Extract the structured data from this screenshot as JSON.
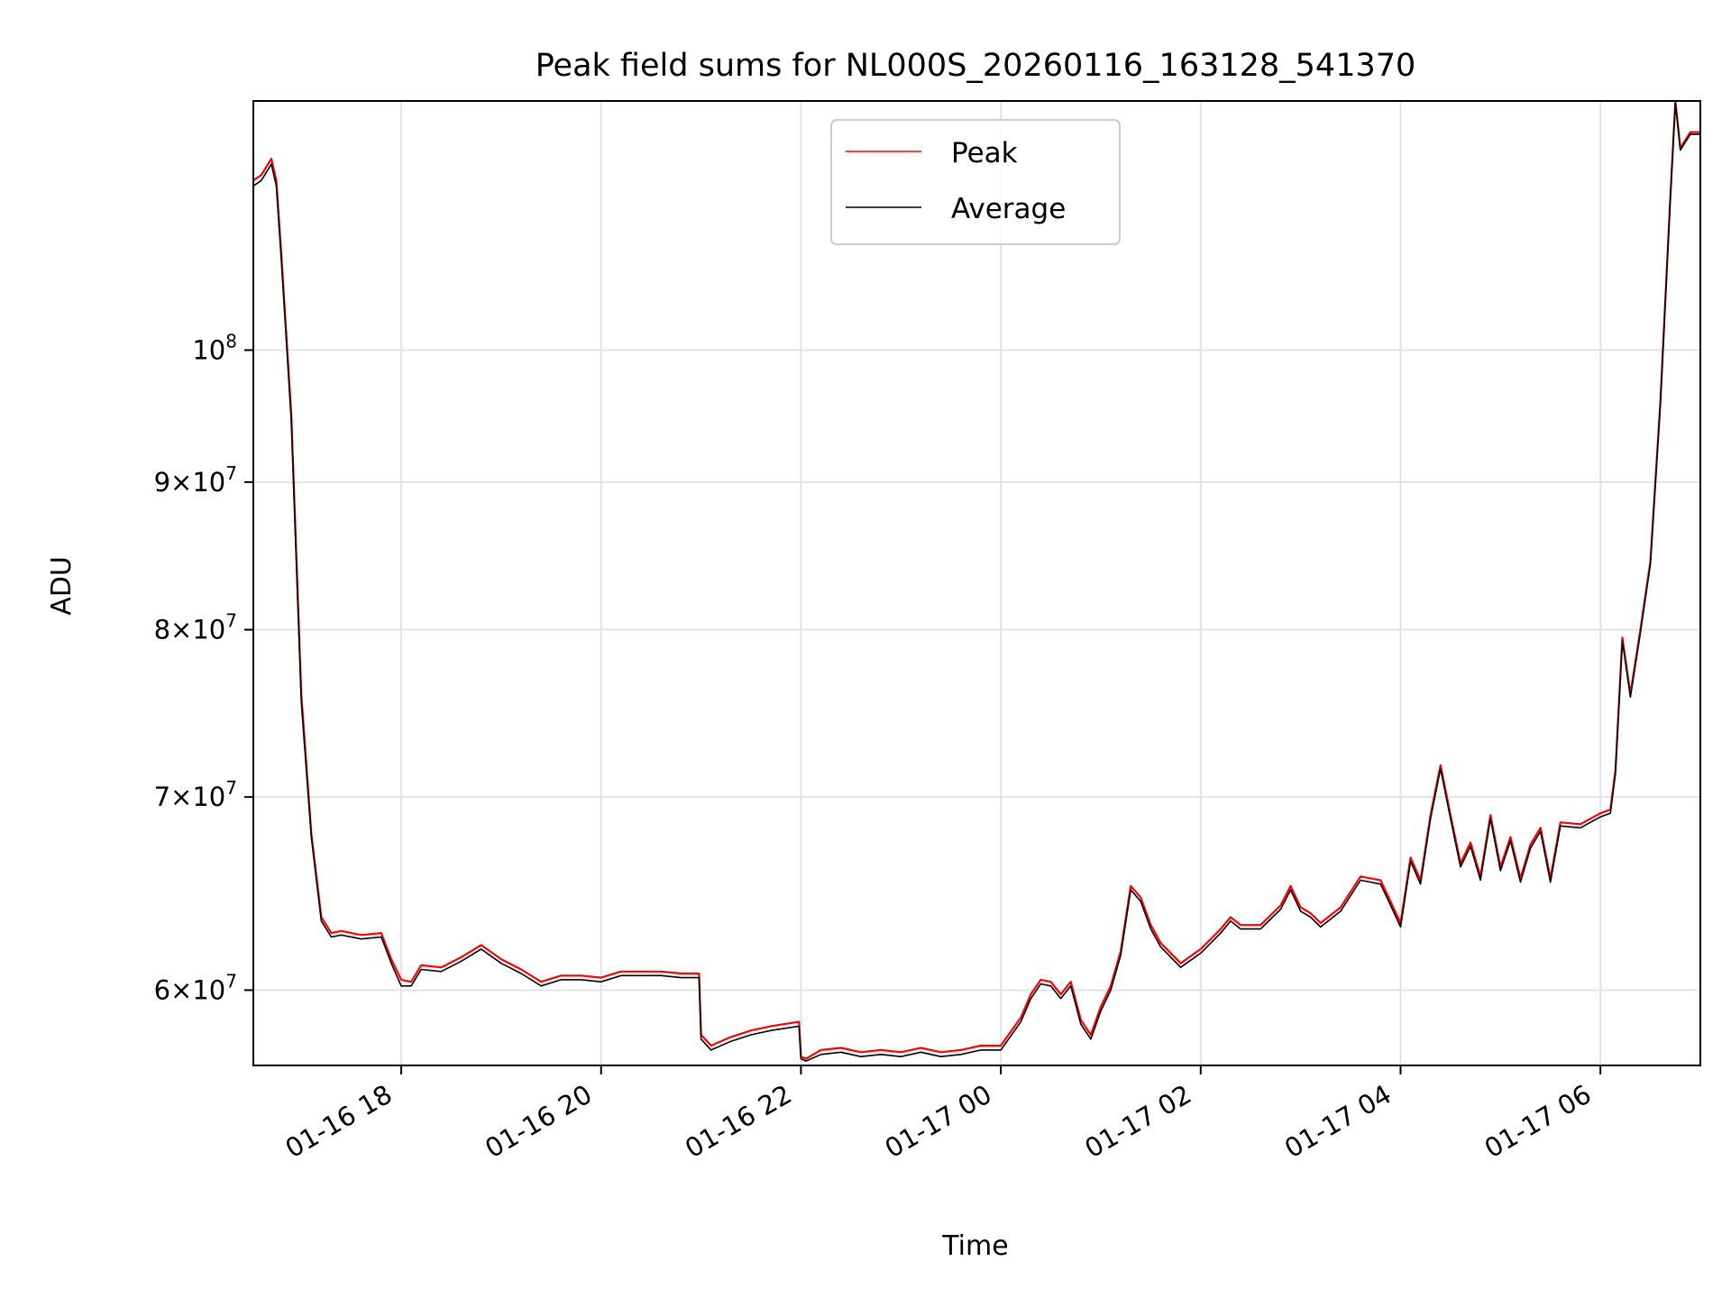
{
  "chart_data": {
    "type": "line",
    "title": "Peak field sums for NL000S_20260116_163128_541370",
    "xlabel": "Time",
    "ylabel": "ADU",
    "y_scale": "log",
    "ylim": [
      56500000,
      122000000
    ],
    "xlim_hours": [
      16.52,
      31.0
    ],
    "grid": true,
    "legend_position": "upper center",
    "x_ticks": [
      {
        "hour": 18,
        "label": "01-16 18"
      },
      {
        "hour": 20,
        "label": "01-16 20"
      },
      {
        "hour": 22,
        "label": "01-16 22"
      },
      {
        "hour": 24,
        "label": "01-17 00"
      },
      {
        "hour": 26,
        "label": "01-17 02"
      },
      {
        "hour": 28,
        "label": "01-17 04"
      },
      {
        "hour": 30,
        "label": "01-17 06"
      }
    ],
    "y_ticks": [
      {
        "value": 60000000,
        "coef": "6",
        "exp": "7"
      },
      {
        "value": 70000000,
        "coef": "7",
        "exp": "7"
      },
      {
        "value": 80000000,
        "coef": "8",
        "exp": "7"
      },
      {
        "value": 90000000,
        "coef": "9",
        "exp": "7"
      },
      {
        "value": 100000000,
        "coef": "",
        "exp": "8"
      }
    ],
    "x_units": "hours since 2026-01-16 00:00",
    "series": [
      {
        "name": "Peak",
        "color": "#ff0000",
        "x": [
          16.52,
          16.6,
          16.7,
          16.75,
          16.8,
          16.9,
          17.0,
          17.1,
          17.2,
          17.3,
          17.4,
          17.6,
          17.8,
          17.9,
          18.0,
          18.1,
          18.2,
          18.4,
          18.6,
          18.8,
          19.0,
          19.2,
          19.4,
          19.6,
          19.8,
          20.0,
          20.2,
          20.4,
          20.6,
          20.8,
          20.98,
          21.0,
          21.1,
          21.3,
          21.5,
          21.7,
          21.98,
          22.0,
          22.05,
          22.2,
          22.4,
          22.6,
          22.8,
          23.0,
          23.2,
          23.4,
          23.6,
          23.8,
          24.0,
          24.2,
          24.3,
          24.4,
          24.5,
          24.6,
          24.7,
          24.8,
          24.9,
          25.0,
          25.1,
          25.2,
          25.3,
          25.4,
          25.5,
          25.6,
          25.8,
          26.0,
          26.2,
          26.3,
          26.4,
          26.6,
          26.8,
          26.9,
          27.0,
          27.1,
          27.2,
          27.4,
          27.6,
          27.8,
          27.9,
          28.0,
          28.1,
          28.2,
          28.3,
          28.4,
          28.5,
          28.6,
          28.7,
          28.8,
          28.9,
          29.0,
          29.1,
          29.2,
          29.3,
          29.4,
          29.5,
          29.6,
          29.8,
          30.0,
          30.1,
          30.15,
          30.22,
          30.3,
          30.4,
          30.5,
          30.6,
          30.7,
          30.75,
          30.8,
          30.9,
          31.0
        ],
        "values": [
          114500000,
          115000000,
          116500000,
          114500000,
          108000000,
          95000000,
          76000000,
          68000000,
          63600000,
          62800000,
          62900000,
          62700000,
          62800000,
          61500000,
          60500000,
          60400000,
          61200000,
          61100000,
          61600000,
          62200000,
          61500000,
          61000000,
          60400000,
          60700000,
          60700000,
          60600000,
          60900000,
          60900000,
          60900000,
          60800000,
          60800000,
          57900000,
          57400000,
          57800000,
          58100000,
          58300000,
          58500000,
          56900000,
          56800000,
          57200000,
          57300000,
          57100000,
          57200000,
          57100000,
          57300000,
          57100000,
          57200000,
          57400000,
          57400000,
          58700000,
          59800000,
          60500000,
          60400000,
          59800000,
          60400000,
          58600000,
          57900000,
          59200000,
          60200000,
          61900000,
          65200000,
          64600000,
          63200000,
          62300000,
          61300000,
          62000000,
          63000000,
          63600000,
          63200000,
          63200000,
          64200000,
          65200000,
          64100000,
          63800000,
          63300000,
          64100000,
          65700000,
          65500000,
          64400000,
          63300000,
          66700000,
          65500000,
          69000000,
          71800000,
          69000000,
          66400000,
          67500000,
          65700000,
          69000000,
          66200000,
          67800000,
          65600000,
          67400000,
          68300000,
          65600000,
          68600000,
          68500000,
          69100000,
          69300000,
          71500000,
          79500000,
          76000000,
          80000000,
          84500000,
          96000000,
          113000000,
          122000000,
          117500000,
          119000000,
          119000000
        ]
      },
      {
        "name": "Average",
        "color": "#000000",
        "x": [
          16.52,
          16.6,
          16.7,
          16.75,
          16.8,
          16.9,
          17.0,
          17.1,
          17.2,
          17.3,
          17.4,
          17.6,
          17.8,
          17.9,
          18.0,
          18.1,
          18.2,
          18.4,
          18.6,
          18.8,
          19.0,
          19.2,
          19.4,
          19.6,
          19.8,
          20.0,
          20.2,
          20.4,
          20.6,
          20.8,
          20.98,
          21.0,
          21.1,
          21.3,
          21.5,
          21.7,
          21.98,
          22.0,
          22.05,
          22.2,
          22.4,
          22.6,
          22.8,
          23.0,
          23.2,
          23.4,
          23.6,
          23.8,
          24.0,
          24.2,
          24.3,
          24.4,
          24.5,
          24.6,
          24.7,
          24.8,
          24.9,
          25.0,
          25.1,
          25.2,
          25.3,
          25.4,
          25.5,
          25.6,
          25.8,
          26.0,
          26.2,
          26.3,
          26.4,
          26.6,
          26.8,
          26.9,
          27.0,
          27.1,
          27.2,
          27.4,
          27.6,
          27.8,
          27.9,
          28.0,
          28.1,
          28.2,
          28.3,
          28.4,
          28.5,
          28.6,
          28.7,
          28.8,
          28.9,
          29.0,
          29.1,
          29.2,
          29.3,
          29.4,
          29.5,
          29.6,
          29.8,
          30.0,
          30.1,
          30.15,
          30.22,
          30.3,
          30.4,
          30.5,
          30.6,
          30.7,
          30.75,
          30.8,
          30.9,
          31.0
        ],
        "values": [
          114000000,
          114500000,
          116000000,
          114000000,
          107500000,
          94500000,
          75500000,
          67800000,
          63400000,
          62600000,
          62700000,
          62500000,
          62600000,
          61300000,
          60200000,
          60200000,
          61000000,
          60900000,
          61400000,
          62000000,
          61300000,
          60800000,
          60200000,
          60500000,
          60500000,
          60400000,
          60700000,
          60700000,
          60700000,
          60600000,
          60600000,
          57700000,
          57200000,
          57600000,
          57900000,
          58100000,
          58300000,
          56800000,
          56700000,
          57000000,
          57100000,
          56900000,
          57000000,
          56900000,
          57100000,
          56900000,
          57000000,
          57200000,
          57200000,
          58500000,
          59600000,
          60300000,
          60200000,
          59600000,
          60200000,
          58400000,
          57700000,
          59000000,
          60000000,
          61700000,
          65000000,
          64400000,
          63000000,
          62100000,
          61100000,
          61800000,
          62800000,
          63400000,
          63000000,
          63000000,
          64000000,
          65000000,
          63900000,
          63600000,
          63100000,
          63900000,
          65500000,
          65300000,
          64200000,
          63100000,
          66500000,
          65300000,
          68800000,
          71600000,
          68800000,
          66200000,
          67300000,
          65500000,
          68800000,
          66000000,
          67600000,
          65400000,
          67200000,
          68100000,
          65400000,
          68400000,
          68300000,
          68900000,
          69100000,
          71300000,
          79300000,
          75800000,
          79800000,
          84300000,
          95800000,
          112800000,
          121800000,
          117300000,
          118800000,
          118800000
        ]
      }
    ]
  }
}
